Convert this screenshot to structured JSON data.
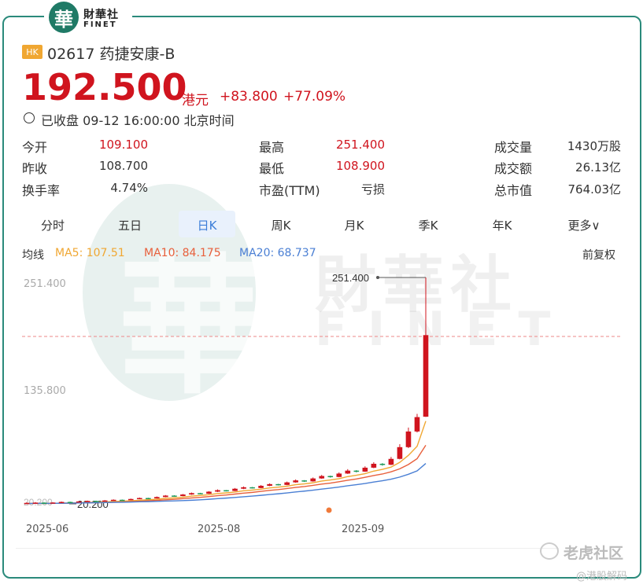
{
  "brand": {
    "logo_glyph": "華",
    "name_cn": "財華社",
    "name_en": "FINET"
  },
  "stock": {
    "market_badge": "HK",
    "name": "02617 药捷安康-B",
    "price": "192.500",
    "currency": "港元",
    "change": "+83.800",
    "change_pct": "+77.09%",
    "status": "已收盘 09-12 16:00:00 北京时间"
  },
  "stats": {
    "col1": [
      {
        "label": "今开",
        "value": "109.100",
        "color": "red"
      },
      {
        "label": "昨收",
        "value": "108.700",
        "color": "normal"
      },
      {
        "label": "换手率",
        "value": "4.74%",
        "color": "normal"
      }
    ],
    "col2": [
      {
        "label": "最高",
        "value": "251.400",
        "color": "red"
      },
      {
        "label": "最低",
        "value": "108.900",
        "color": "red"
      },
      {
        "label": "市盈(TTM)",
        "value": "亏损",
        "color": "normal"
      }
    ],
    "col3": [
      {
        "label": "成交量",
        "value": "1430万股"
      },
      {
        "label": "成交额",
        "value": "26.13亿"
      },
      {
        "label": "总市值",
        "value": "764.03亿"
      }
    ]
  },
  "tabs": [
    {
      "label": "分时",
      "active": false
    },
    {
      "label": "五日",
      "active": false
    },
    {
      "label": "日K",
      "active": true
    },
    {
      "label": "周K",
      "active": false
    },
    {
      "label": "月K",
      "active": false
    },
    {
      "label": "季K",
      "active": false
    },
    {
      "label": "年K",
      "active": false
    },
    {
      "label": "更多∨",
      "active": false
    }
  ],
  "ma": {
    "label": "均线",
    "ma5": "MA5: 107.51",
    "ma10": "MA10: 84.175",
    "ma20": "MA20: 68.737",
    "adjust": "前复权",
    "colors": {
      "ma5": "#f0a732",
      "ma10": "#e8603c",
      "ma20": "#4a7fd4"
    }
  },
  "watermark": {
    "cn": "財華社",
    "en": "FINET",
    "glyph": "華"
  },
  "chart_data": {
    "type": "candlestick",
    "y_ticks": [
      "251.400",
      "135.800"
    ],
    "x_ticks": [
      "2025-06",
      "2025-08",
      "2025-09"
    ],
    "annotations": {
      "high_label": "251.400",
      "low_label": "20.200",
      "low_left_label": "20.200"
    },
    "current_line_value": 192.5,
    "ylim": [
      20,
      251.4
    ],
    "candles": [
      [
        20.2,
        21.0,
        20.0,
        21.5
      ],
      [
        21.0,
        21.3,
        20.5,
        21.8
      ],
      [
        21.3,
        21.0,
        20.8,
        21.6
      ],
      [
        21.0,
        21.4,
        20.7,
        21.7
      ],
      [
        21.4,
        22.0,
        21.2,
        22.4
      ],
      [
        22.0,
        21.8,
        21.5,
        22.3
      ],
      [
        21.8,
        22.5,
        21.6,
        22.8
      ],
      [
        22.5,
        23.0,
        22.2,
        23.4
      ],
      [
        23.0,
        22.7,
        22.4,
        23.3
      ],
      [
        22.7,
        23.5,
        22.5,
        23.9
      ],
      [
        23.5,
        24.2,
        23.2,
        24.6
      ],
      [
        24.2,
        24.0,
        23.7,
        24.5
      ],
      [
        24.0,
        25.0,
        23.8,
        25.4
      ],
      [
        25.0,
        26.0,
        24.8,
        26.5
      ],
      [
        26.0,
        25.6,
        25.2,
        26.3
      ],
      [
        25.6,
        27.0,
        25.4,
        27.6
      ],
      [
        27.0,
        28.5,
        26.8,
        29.0
      ],
      [
        28.5,
        28.0,
        27.5,
        28.9
      ],
      [
        28.0,
        29.6,
        27.8,
        30.1
      ],
      [
        29.6,
        31.0,
        29.3,
        31.6
      ],
      [
        31.0,
        30.4,
        30.0,
        31.3
      ],
      [
        30.4,
        32.5,
        30.2,
        33.0
      ],
      [
        32.5,
        34.0,
        32.1,
        34.8
      ],
      [
        34.0,
        33.2,
        32.8,
        34.2
      ],
      [
        33.2,
        35.5,
        33.0,
        36.2
      ],
      [
        35.5,
        37.0,
        35.1,
        37.8
      ],
      [
        37.0,
        36.2,
        35.7,
        37.3
      ],
      [
        36.2,
        38.5,
        36.0,
        39.2
      ],
      [
        38.5,
        40.2,
        38.1,
        41.0
      ],
      [
        40.2,
        39.4,
        38.8,
        40.5
      ],
      [
        39.4,
        42.0,
        39.1,
        42.8
      ],
      [
        42.0,
        44.0,
        41.6,
        45.0
      ],
      [
        44.0,
        43.0,
        42.4,
        44.3
      ],
      [
        43.0,
        46.0,
        42.7,
        47.0
      ],
      [
        46.0,
        48.5,
        45.6,
        49.6
      ],
      [
        48.5,
        47.5,
        46.8,
        48.9
      ],
      [
        47.5,
        51.0,
        47.2,
        52.2
      ],
      [
        51.0,
        54.0,
        50.6,
        55.5
      ],
      [
        54.0,
        53.0,
        52.2,
        54.5
      ],
      [
        53.0,
        57.0,
        52.7,
        58.4
      ],
      [
        57.0,
        61.0,
        56.5,
        62.6
      ],
      [
        61.0,
        60.0,
        59.0,
        61.7
      ],
      [
        60.0,
        66.0,
        59.6,
        68.0
      ],
      [
        66.0,
        78.0,
        65.5,
        81.0
      ],
      [
        78.0,
        94.0,
        77.0,
        98.0
      ],
      [
        94.0,
        108.7,
        93.0,
        112.0
      ],
      [
        109.1,
        192.5,
        108.9,
        251.4
      ]
    ]
  },
  "footer": {
    "community": "老虎社区",
    "author": "@港股解码"
  }
}
